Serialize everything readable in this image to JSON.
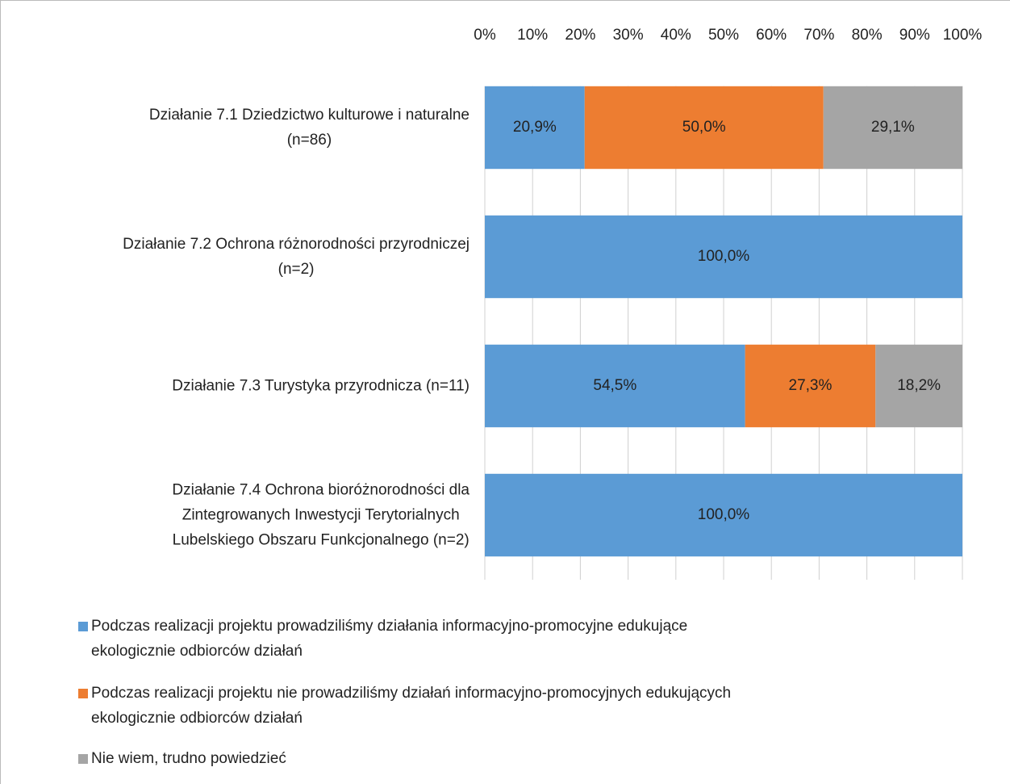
{
  "chart_data": {
    "type": "stacked_barh",
    "categories": [
      "Działanie 7.1 Dziedzictwo kulturowe i naturalne\n(n=86)",
      "Działanie 7.2 Ochrona różnorodności przyrodniczej\n(n=2)",
      "Działanie 7.3 Turystyka przyrodnicza (n=11)",
      "Działanie 7.4 Ochrona bioróżnorodności dla\nZintegrowanych Inwestycji Terytorialnych\nLubelskiego Obszaru Funkcjonalnego (n=2)"
    ],
    "series": [
      {
        "name": "Podczas realizacji projektu prowadziliśmy działania informacyjno-promocyjne edukujące\nekologicznie odbiorców działań",
        "color": "#5b9bd5",
        "values": [
          20.9,
          100,
          54.5,
          100
        ],
        "value_labels": [
          "20,9%",
          "100,0%",
          "54,5%",
          "100,0%"
        ]
      },
      {
        "name": "Podczas realizacji projektu nie prowadziliśmy działań informacyjno-promocyjnych edukujących\nekologicznie odbiorców działań",
        "color": "#ed7d31",
        "values": [
          50.0,
          0,
          27.3,
          0
        ],
        "value_labels": [
          "50,0%",
          null,
          "27,3%",
          null
        ]
      },
      {
        "name": "Nie wiem, trudno powiedzieć",
        "color": "#a5a5a5",
        "values": [
          29.1,
          0,
          18.2,
          0
        ],
        "value_labels": [
          "29,1%",
          null,
          "18,2%",
          null
        ]
      }
    ],
    "xlim": [
      0,
      100
    ],
    "xticks": [
      {
        "value": 0,
        "label": "0%"
      },
      {
        "value": 10,
        "label": "10%"
      },
      {
        "value": 20,
        "label": "20%"
      },
      {
        "value": 30,
        "label": "30%"
      },
      {
        "value": 40,
        "label": "40%"
      },
      {
        "value": 50,
        "label": "50%"
      },
      {
        "value": 60,
        "label": "60%"
      },
      {
        "value": 70,
        "label": "70%"
      },
      {
        "value": 80,
        "label": "80%"
      },
      {
        "value": 90,
        "label": "90%"
      },
      {
        "value": 100,
        "label": "100%"
      }
    ],
    "grid": true,
    "legend": "bottom"
  }
}
